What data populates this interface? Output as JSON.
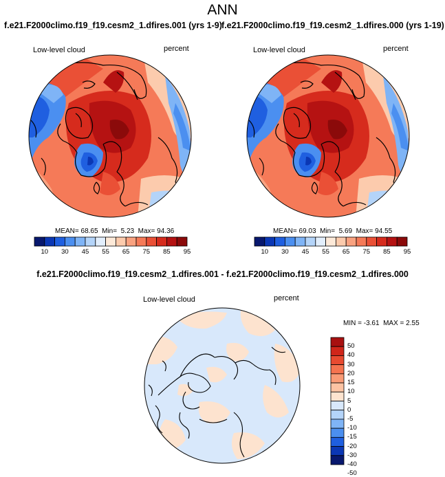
{
  "figure": {
    "title": "ANN",
    "diff_title": "f.e21.F2000climo.f19_f19.cesm2_1.dfires.001 - f.e21.F2000climo.f19_f19.cesm2_1.dfires.000"
  },
  "colors": {
    "top_levels": [
      "#08186e",
      "#0b37b4",
      "#1f5fe0",
      "#4b8ff0",
      "#7fb4f6",
      "#b4d4f9",
      "#e2eefc",
      "#fde9d8",
      "#fccbad",
      "#f9a280",
      "#f57a58",
      "#ea5036",
      "#d62b1d",
      "#b51212",
      "#8b0a0a"
    ],
    "diff_levels": [
      "#08186e",
      "#0b37b4",
      "#1f5fe0",
      "#4b8ff0",
      "#7fb4f6",
      "#b4d4f9",
      "#d8e8fb",
      "#fde3cf",
      "#fcc3a3",
      "#f99b76",
      "#f5734f",
      "#e84a30",
      "#d0261a",
      "#a81010"
    ]
  },
  "chart_data": [
    {
      "type": "heatmap",
      "projection": "north-polar-stereographic",
      "title": "f.e21.F2000climo.f19_f19.cesm2_1.dfires.001 (yrs 1-9)",
      "left_label": "Low-level cloud",
      "right_label": "percent",
      "stats": {
        "mean_label": "MEAN=",
        "mean": "68.65",
        "min_label": "Min=",
        "min": "5.23",
        "max_label": "Max=",
        "max": "94.36"
      },
      "colorbar_ticks": [
        "10",
        "30",
        "45",
        "55",
        "65",
        "75",
        "85",
        "95"
      ]
    },
    {
      "type": "heatmap",
      "projection": "north-polar-stereographic",
      "title": "f.e21.F2000climo.f19_f19.cesm2_1.dfires.000 (yrs 1-19)",
      "left_label": "Low-level cloud",
      "right_label": "percent",
      "stats": {
        "mean_label": "MEAN=",
        "mean": "69.03",
        "min_label": "Min=",
        "min": "5.69",
        "max_label": "Max=",
        "max": "94.55"
      },
      "colorbar_ticks": [
        "10",
        "30",
        "45",
        "55",
        "65",
        "75",
        "85",
        "95"
      ]
    },
    {
      "type": "heatmap",
      "projection": "north-polar-stereographic",
      "title": "",
      "left_label": "Low-level cloud",
      "right_label": "percent",
      "stats": {
        "min_label": "MIN =",
        "min": "-3.61",
        "max_label": "MAX =",
        "max": "2.55"
      },
      "colorbar_ticks": [
        "50",
        "40",
        "30",
        "20",
        "15",
        "10",
        "5",
        "0",
        "-5",
        "-10",
        "-15",
        "-20",
        "-30",
        "-40",
        "-50"
      ]
    }
  ]
}
